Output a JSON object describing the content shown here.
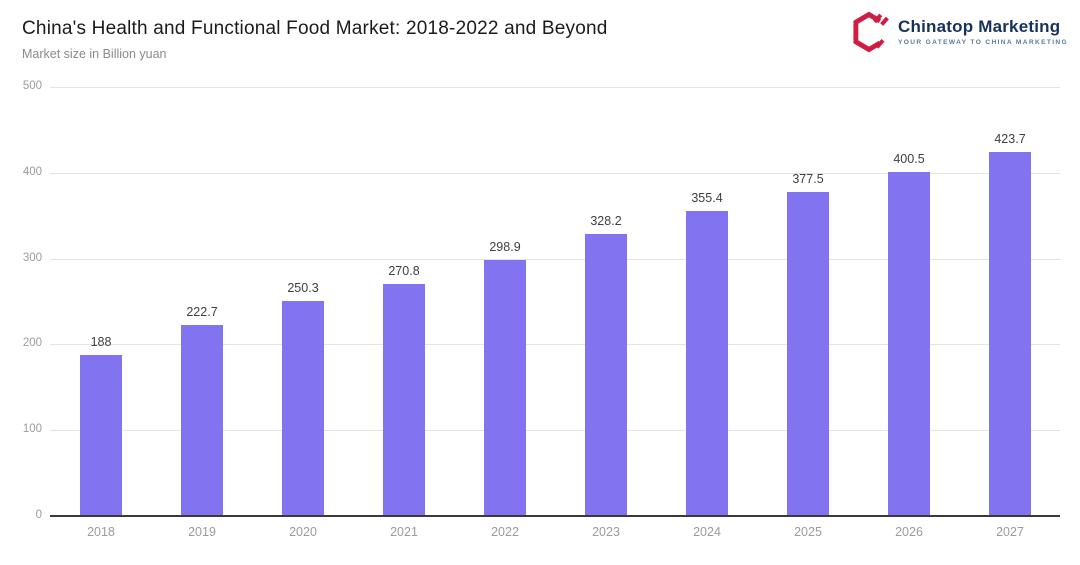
{
  "header": {
    "title": "China's Health and Functional Food Market: 2018-2022 and Beyond",
    "subtitle": "Market size in Billion yuan"
  },
  "logo": {
    "brand": "Chinatop Marketing",
    "tagline": "YOUR GATEWAY TO CHINA MARKETING",
    "icon": "chinatop-hexagon-c-icon",
    "icon_color": "#cf1d41",
    "brand_color": "#16325c",
    "tagline_color": "#5b7b99"
  },
  "chart_data": {
    "type": "bar",
    "title": "China's Health and Functional Food Market: 2018-2022 and Beyond",
    "subtitle_unit_label": "Market size in Billion yuan",
    "categories": [
      "2018",
      "2019",
      "2020",
      "2021",
      "2022",
      "2023",
      "2024",
      "2025",
      "2026",
      "2027"
    ],
    "values": [
      188,
      222.7,
      250.3,
      270.8,
      298.9,
      328.2,
      355.4,
      377.5,
      400.5,
      423.7
    ],
    "data_labels": [
      "188",
      "222.7",
      "250.3",
      "270.8",
      "298.9",
      "328.2",
      "355.4",
      "377.5",
      "400.5",
      "423.7"
    ],
    "xlabel": "",
    "ylabel": "",
    "ylim": [
      0,
      500
    ],
    "yticks": [
      0,
      100,
      200,
      300,
      400,
      500
    ],
    "bar_color": "#8273f0",
    "grid": true,
    "gridline_color": "#e4e4e4",
    "axis_color": "#3a3a3a",
    "legend": false
  }
}
